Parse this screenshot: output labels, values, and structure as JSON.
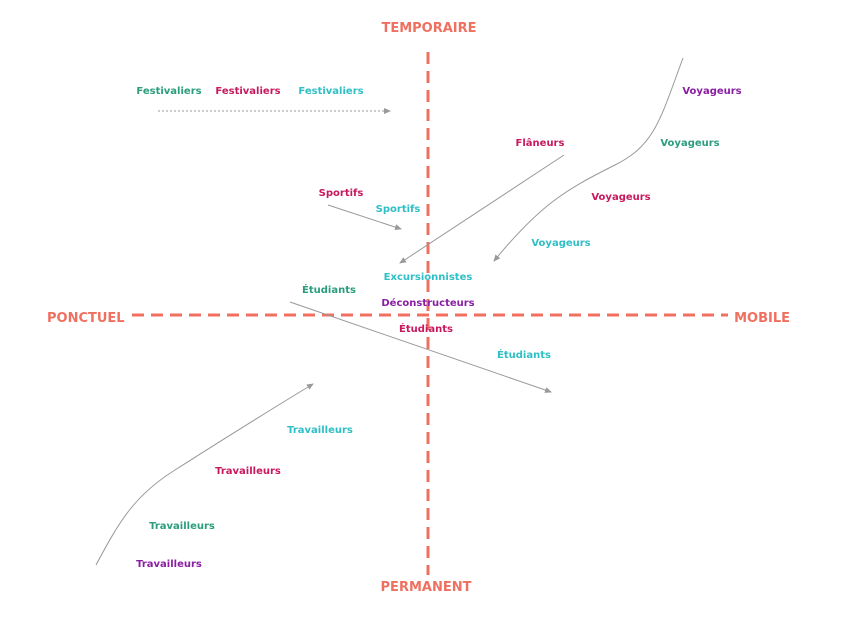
{
  "colors": {
    "axis": "#f07060",
    "green": "#2a9d7c",
    "crimson": "#c8185e",
    "cyan": "#2fbfc6",
    "purple": "#8a1ea3",
    "arrow": "#999999"
  },
  "axes": {
    "top": "TEMPORAIRE",
    "bottom": "PERMANENT",
    "left": "PONCTUEL",
    "right": "MOBILE"
  },
  "labels": [
    {
      "text": "Festivaliers",
      "color": "green"
    },
    {
      "text": "Festivaliers",
      "color": "crimson"
    },
    {
      "text": "Festivaliers",
      "color": "cyan"
    },
    {
      "text": "Voyageurs",
      "color": "purple"
    },
    {
      "text": "Flâneurs",
      "color": "crimson"
    },
    {
      "text": "Voyageurs",
      "color": "green"
    },
    {
      "text": "Sportifs",
      "color": "crimson"
    },
    {
      "text": "Voyageurs",
      "color": "crimson"
    },
    {
      "text": "Sportifs",
      "color": "cyan"
    },
    {
      "text": "Voyageurs",
      "color": "cyan"
    },
    {
      "text": "Excursionnistes",
      "color": "cyan"
    },
    {
      "text": "Étudiants",
      "color": "green"
    },
    {
      "text": "Déconstructeurs",
      "color": "purple"
    },
    {
      "text": "Étudiants",
      "color": "crimson"
    },
    {
      "text": "Étudiants",
      "color": "cyan"
    },
    {
      "text": "Travailleurs",
      "color": "cyan"
    },
    {
      "text": "Travailleurs",
      "color": "crimson"
    },
    {
      "text": "Travailleurs",
      "color": "green"
    },
    {
      "text": "Travailleurs",
      "color": "purple"
    }
  ]
}
